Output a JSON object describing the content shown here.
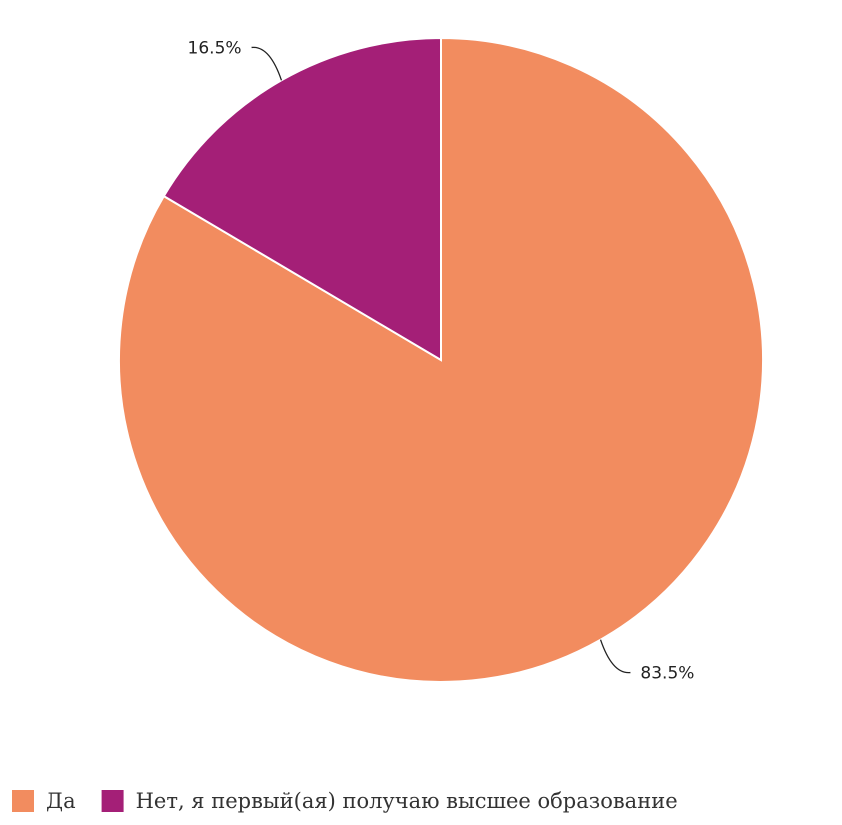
{
  "chart_data": {
    "type": "pie",
    "title": "",
    "slices": [
      {
        "label": "Да",
        "value": 83.5,
        "value_label": "83.5%",
        "color": "#F28C5F"
      },
      {
        "label": "Нет, я первый(ая) получаю высшее образование",
        "value": 16.5,
        "value_label": "16.5%",
        "color": "#A41F77"
      }
    ],
    "start_angle_deg": 0,
    "direction": "clockwise",
    "legend_position": "bottom-left"
  }
}
